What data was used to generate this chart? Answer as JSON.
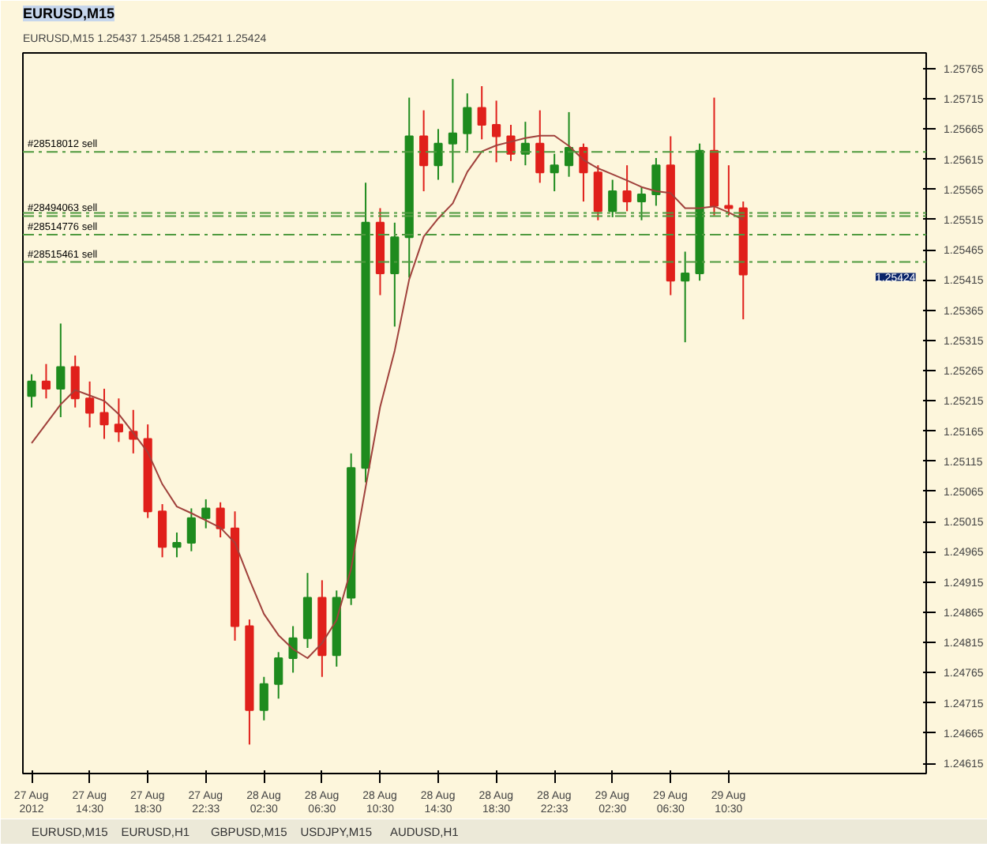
{
  "chart_data": {
    "type": "candlestick",
    "title": "EURUSD,M15",
    "subtitle": "EURUSD,M15 1.25437 1.25458 1.25421 1.25424",
    "categories": [
      "27 Aug 2012",
      null,
      null,
      null,
      "27 Aug 14:30",
      null,
      null,
      null,
      "27 Aug 18:30",
      null,
      null,
      null,
      "27 Aug 22:33",
      null,
      null,
      null,
      "28 Aug 02:30",
      null,
      null,
      null,
      "28 Aug 06:30",
      null,
      null,
      null,
      "28 Aug 10:30",
      null,
      null,
      null,
      "28 Aug 14:30",
      null,
      null,
      null,
      "28 Aug 18:30",
      null,
      null,
      null,
      "28 Aug 22:33",
      null,
      null,
      null,
      "29 Aug 02:30",
      null,
      null,
      null,
      "29 Aug 06:30",
      null,
      null,
      null,
      "29 Aug 10:30",
      null,
      null,
      null,
      null,
      null,
      null,
      null,
      null,
      null,
      null,
      null,
      null,
      null
    ],
    "ohlc": [
      [
        1.25223,
        1.25259,
        1.25204,
        1.25247
      ],
      [
        1.25247,
        1.25276,
        1.25219,
        1.25235
      ],
      [
        1.25235,
        1.25343,
        1.25188,
        1.25271
      ],
      [
        1.25271,
        1.2529,
        1.25204,
        1.25219
      ],
      [
        1.25219,
        1.25247,
        1.25171,
        1.25195
      ],
      [
        1.25195,
        1.25235,
        1.25152,
        1.25176
      ],
      [
        1.25176,
        1.25219,
        1.25147,
        1.25164
      ],
      [
        1.25164,
        1.252,
        1.25128,
        1.25152
      ],
      [
        1.25152,
        1.25176,
        1.25021,
        1.25032
      ],
      [
        1.25032,
        1.25044,
        1.24956,
        1.24973
      ],
      [
        1.24973,
        1.24997,
        1.24956,
        1.2498
      ],
      [
        1.2498,
        1.25037,
        1.24966,
        1.25021
      ],
      [
        1.25021,
        1.25052,
        1.25004,
        1.25037
      ],
      [
        1.25037,
        1.25047,
        1.24989,
        1.25004
      ],
      [
        1.25004,
        1.25032,
        1.24818,
        1.24842
      ],
      [
        1.24842,
        1.24853,
        1.24646,
        1.24703
      ],
      [
        1.24703,
        1.24758,
        1.24686,
        1.24746
      ],
      [
        1.24746,
        1.24799,
        1.24722,
        1.24789
      ],
      [
        1.24789,
        1.24842,
        1.24765,
        1.24822
      ],
      [
        1.24822,
        1.2493,
        1.24806,
        1.24889
      ],
      [
        1.24889,
        1.24918,
        1.24758,
        1.24794
      ],
      [
        1.24794,
        1.24901,
        1.24775,
        1.24889
      ],
      [
        1.24889,
        1.25128,
        1.24877,
        1.25104
      ],
      [
        1.25104,
        1.25576,
        1.2508,
        1.2551
      ],
      [
        1.2551,
        1.25534,
        1.2539,
        1.25426
      ],
      [
        1.25426,
        1.2551,
        1.25338,
        1.25486
      ],
      [
        1.25486,
        1.25717,
        1.25419,
        1.25653
      ],
      [
        1.25653,
        1.25696,
        1.25562,
        1.25605
      ],
      [
        1.25605,
        1.25665,
        1.25581,
        1.25641
      ],
      [
        1.25641,
        1.25748,
        1.25576,
        1.25658
      ],
      [
        1.25658,
        1.25724,
        1.25629,
        1.257
      ],
      [
        1.257,
        1.25736,
        1.25648,
        1.25672
      ],
      [
        1.25672,
        1.25712,
        1.2561,
        1.25653
      ],
      [
        1.25653,
        1.25672,
        1.25612,
        1.25624
      ],
      [
        1.25624,
        1.25677,
        1.25605,
        1.25641
      ],
      [
        1.25641,
        1.25696,
        1.25576,
        1.25593
      ],
      [
        1.25593,
        1.25624,
        1.25562,
        1.25605
      ],
      [
        1.25605,
        1.25693,
        1.25586,
        1.25634
      ],
      [
        1.25634,
        1.25641,
        1.25545,
        1.25593
      ],
      [
        1.25593,
        1.25605,
        1.25514,
        1.25529
      ],
      [
        1.25529,
        1.25581,
        1.25519,
        1.25562
      ],
      [
        1.25562,
        1.25605,
        1.25529,
        1.25545
      ],
      [
        1.25545,
        1.25569,
        1.25514,
        1.25557
      ],
      [
        1.25557,
        1.25617,
        1.25538,
        1.25605
      ],
      [
        1.25605,
        1.25653,
        1.2539,
        1.25414
      ],
      [
        1.25414,
        1.25462,
        1.25312,
        1.25426
      ],
      [
        1.25426,
        1.25641,
        1.25414,
        1.25629
      ],
      [
        1.25629,
        1.25717,
        1.25522,
        1.25538
      ],
      [
        1.25538,
        1.25605,
        1.25522,
        1.25534
      ],
      [
        1.25534,
        1.25545,
        1.2535,
        1.25424
      ],
      null,
      null,
      null,
      null,
      null,
      null,
      null,
      null,
      null,
      null,
      null,
      null
    ],
    "colors": [
      "#1e8b1e",
      "#e0201b",
      "#1e8b1e",
      "#e0201b",
      "#e0201b",
      "#e0201b",
      "#e0201b",
      "#e0201b",
      "#e0201b",
      "#e0201b",
      "#1e8b1e",
      "#1e8b1e",
      "#1e8b1e",
      "#e0201b",
      "#e0201b",
      "#e0201b",
      "#1e8b1e",
      "#1e8b1e",
      "#1e8b1e",
      "#1e8b1e",
      "#e0201b",
      "#1e8b1e",
      "#1e8b1e",
      "#1e8b1e",
      "#e0201b",
      "#1e8b1e",
      "#1e8b1e",
      "#e0201b",
      "#1e8b1e",
      "#1e8b1e",
      "#1e8b1e",
      "#e0201b",
      "#e0201b",
      "#e0201b",
      "#1e8b1e",
      "#e0201b",
      "#1e8b1e",
      "#1e8b1e",
      "#e0201b",
      "#e0201b",
      "#1e8b1e",
      "#e0201b",
      "#1e8b1e",
      "#1e8b1e",
      "#e0201b",
      "#1e8b1e",
      "#1e8b1e",
      "#e0201b",
      "#e0201b",
      "#e0201b",
      null,
      null,
      null,
      null,
      null,
      null,
      null,
      null,
      null,
      null,
      null,
      null
    ],
    "series": [
      {
        "type": "line",
        "color": "#a0413c",
        "values": [
          1.25145,
          1.25177,
          1.25209,
          1.25233,
          1.25224,
          1.25215,
          1.25193,
          1.25162,
          1.2513,
          1.25077,
          1.2504,
          1.25029,
          1.25017,
          1.25005,
          1.2498,
          1.24919,
          1.24862,
          1.24827,
          1.24804,
          1.24789,
          1.24814,
          1.24852,
          1.24937,
          1.25072,
          1.25205,
          1.25298,
          1.25416,
          1.25487,
          1.25517,
          1.25542,
          1.25594,
          1.25628,
          1.25638,
          1.25644,
          1.2565,
          1.25654,
          1.25654,
          1.25637,
          1.25614,
          1.256,
          1.2559,
          1.2558,
          1.25569,
          1.25562,
          1.25559,
          1.25534,
          1.25534,
          1.25537,
          1.25527,
          1.25515,
          null,
          null,
          null,
          null,
          null,
          null,
          null,
          null,
          null,
          null,
          null,
          null
        ]
      }
    ],
    "ylim": [
      1.24598,
      1.25791
    ],
    "yticks": [
      1.24615,
      1.24665,
      1.24715,
      1.24765,
      1.24815,
      1.24865,
      1.24915,
      1.24965,
      1.25015,
      1.25065,
      1.25115,
      1.25165,
      1.25215,
      1.25265,
      1.25315,
      1.25365,
      1.25415,
      1.25465,
      1.25515,
      1.25565,
      1.25615,
      1.25665,
      1.25715,
      1.25765
    ],
    "ref_lines": [
      {
        "axis": "y",
        "value": 1.25627,
        "label": "#28518012 sell",
        "color": "#4f9a3f",
        "line_style": "dashed"
      },
      {
        "axis": "y",
        "value": 1.25526,
        "label": null,
        "color": "#4f9a3f",
        "line_style": "dashed"
      },
      {
        "axis": "y",
        "value": 1.25521,
        "label": "#28494063 sell",
        "color": "#4f9a3f",
        "line_style": "dashed"
      },
      {
        "axis": "y",
        "value": 1.2549,
        "label": "#28514776 sell",
        "color": "#4f9a3f",
        "line_style": "dashed"
      },
      {
        "axis": "y",
        "value": 1.25445,
        "label": "#28515461 sell",
        "color": "#4f9a3f",
        "line_style": "dashed"
      }
    ],
    "annotations": [
      "1.25424",
      "EURUSD,M15",
      "EURUSD,H1",
      "GBPUSD,M15",
      "USDJPY,M15",
      "AUDUSD,H1"
    ]
  }
}
